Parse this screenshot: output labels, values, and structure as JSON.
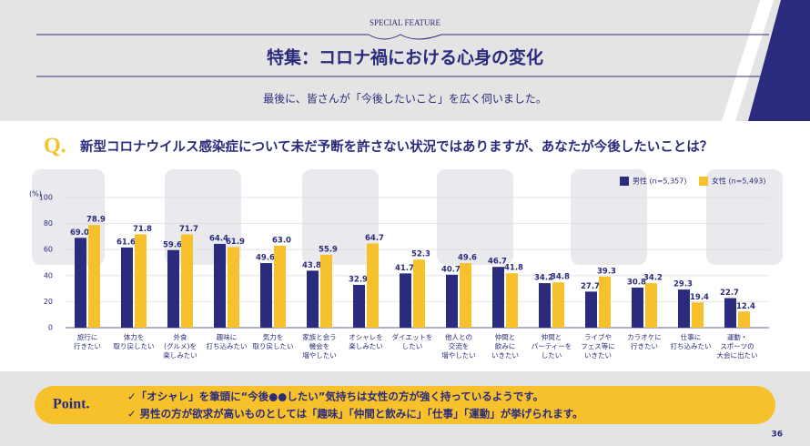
{
  "header": {
    "kicker": "SPECIAL FEATURE",
    "title": "特集：コロナ禍における心身の変化",
    "subtitle": "最後に、皆さんが「今後したいこと」を広く伺いました。"
  },
  "question": {
    "mark": "Q.",
    "text": "新型コロナウイルス感染症について未だ予断を許さない状況ではありますが、あなたが今後したいことは？"
  },
  "chart_data": {
    "type": "bar",
    "y_unit": "(%)",
    "categories": [
      [
        "旅行に",
        "行きたい"
      ],
      [
        "体力を",
        "取り戻したい"
      ],
      [
        "外食",
        "(グルメ)を",
        "楽しみたい"
      ],
      [
        "趣味に",
        "打ち込みたい"
      ],
      [
        "気力を",
        "取り戻したい"
      ],
      [
        "家族と会う",
        "機会を",
        "増やしたい"
      ],
      [
        "オシャレを",
        "楽しみたい"
      ],
      [
        "ダイエットを",
        "したい"
      ],
      [
        "他人との",
        "交流を",
        "増やしたい"
      ],
      [
        "仲間と",
        "飲みに",
        "いきたい"
      ],
      [
        "仲間と",
        "パーティーを",
        "したい"
      ],
      [
        "ライブや",
        "フェス等に",
        "いきたい"
      ],
      [
        "カラオケに",
        "行きたい"
      ],
      [
        "仕事に",
        "打ち込みたい"
      ],
      [
        "運動・",
        "スポーツの",
        "大会に出たい"
      ]
    ],
    "series": [
      {
        "name": "男性 (n=5,357)",
        "color": "#2a2b7c",
        "values": [
          69.0,
          61.6,
          59.6,
          64.4,
          49.6,
          43.8,
          32.9,
          41.7,
          40.7,
          46.7,
          34.2,
          27.7,
          30.8,
          29.3,
          22.7
        ],
        "value_labels": [
          "69.0",
          "61.6",
          "59.6",
          "64.4",
          "49.6",
          "43.8",
          "32.9",
          "41.7",
          "40.7",
          "46.7",
          "34.2",
          "27.7",
          "30.8",
          "29.3",
          "22.7"
        ]
      },
      {
        "name": "女性 (n=5,493)",
        "color": "#f7c12b",
        "values": [
          78.9,
          71.8,
          71.7,
          61.9,
          63.0,
          55.9,
          64.7,
          52.3,
          49.6,
          41.8,
          34.8,
          39.3,
          34.2,
          19.4,
          12.4
        ],
        "value_labels": [
          "78.9",
          "71.8",
          "71.7",
          "61.9",
          "63.0",
          "55.9",
          "64.7",
          "52.3",
          "49.6",
          "41.8",
          "34.8",
          "39.3",
          "34.2",
          "19.4",
          "12.4"
        ]
      }
    ],
    "ylim": [
      0,
      100
    ],
    "yticks": [
      0,
      20,
      40,
      60,
      80,
      100
    ],
    "grid": true
  },
  "point": {
    "label": "Point.",
    "lines": [
      "✓「オシャレ」を筆頭に“今後●●したい”気持ちは女性の方が強く持っているようです。",
      "✓ 男性の方が欲求が高いものとしては「趣味」「仲間と飲みに」「仕事」「運動」が挙げられます。"
    ]
  },
  "page_number": "36"
}
